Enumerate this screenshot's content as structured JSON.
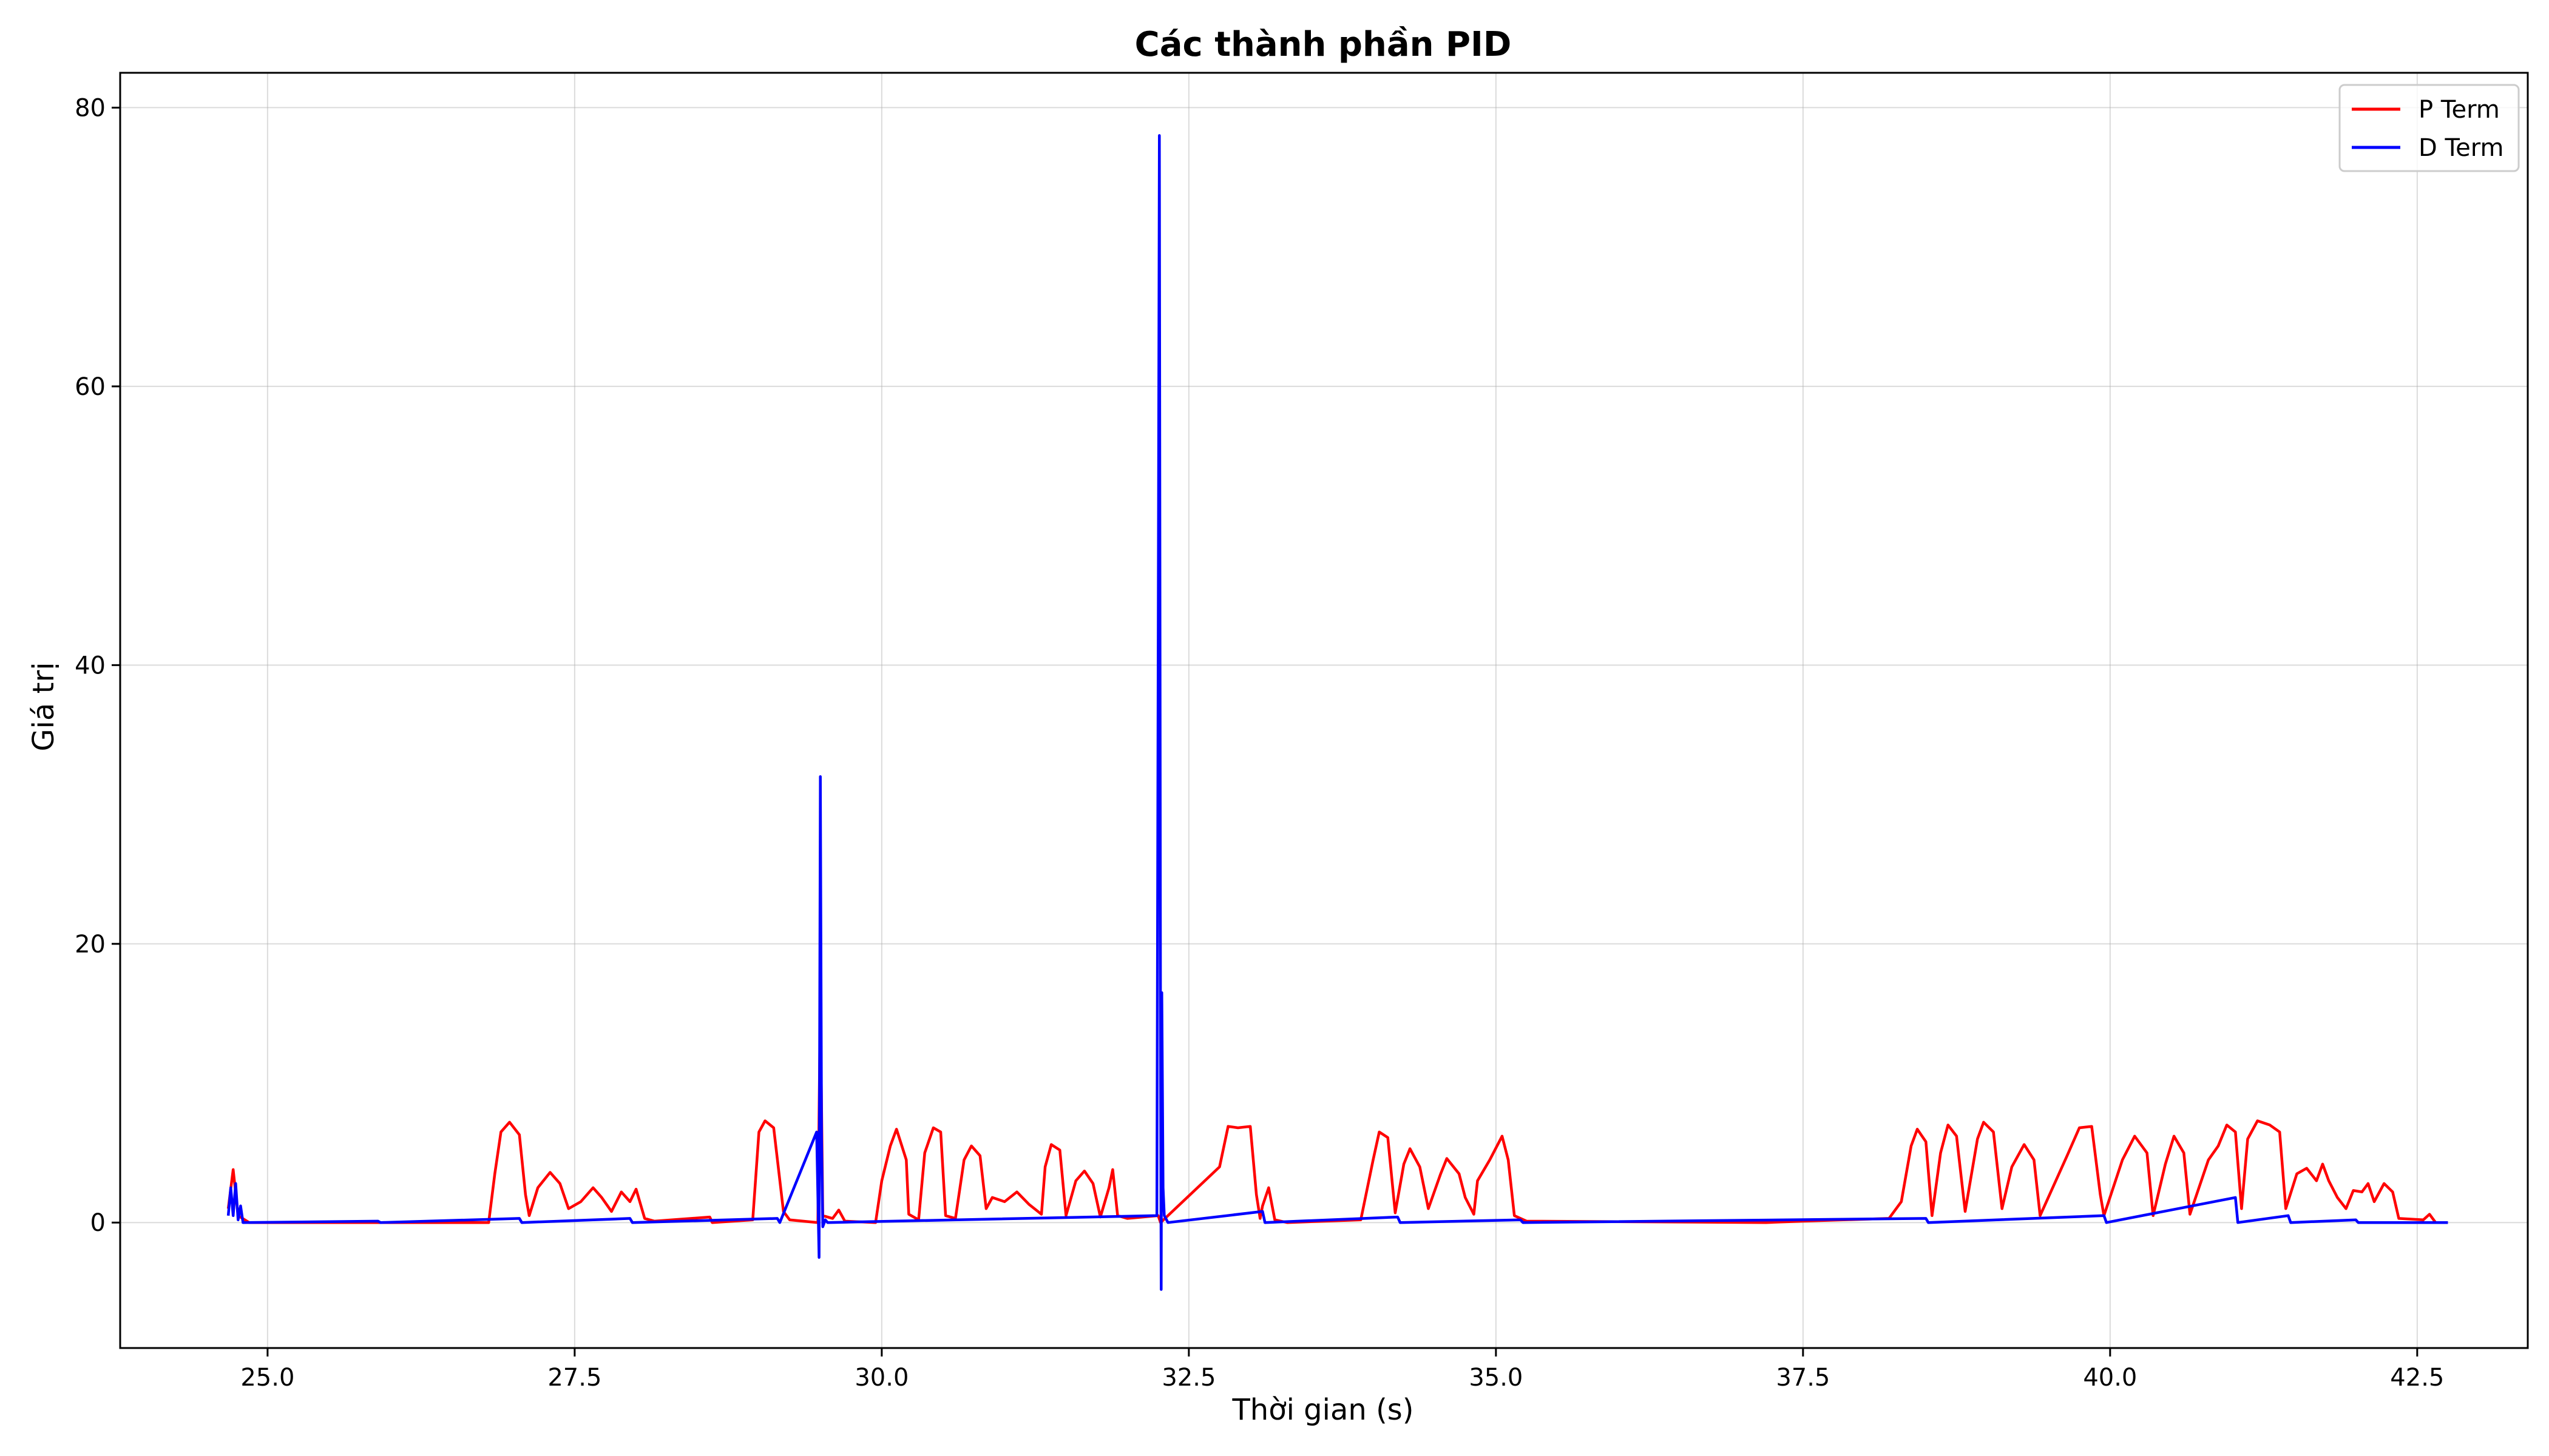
{
  "chart_data": {
    "type": "line",
    "title": "Các thành phần PID",
    "xlabel": "Thời gian (s)",
    "ylabel": "Giá trị",
    "xlim": [
      23.8,
      43.4
    ],
    "ylim": [
      -9,
      82.5
    ],
    "x_ticks": [
      25.0,
      27.5,
      30.0,
      32.5,
      35.0,
      37.5,
      40.0,
      42.5
    ],
    "y_ticks": [
      0,
      20,
      40,
      60,
      80
    ],
    "grid": true,
    "legend_position": "top-right",
    "series": [
      {
        "name": "P Term",
        "color": "#ff0000",
        "points": [
          [
            24.68,
            1.0
          ],
          [
            24.72,
            3.8
          ],
          [
            24.76,
            0.5
          ],
          [
            24.85,
            0.0
          ],
          [
            26.8,
            0.0
          ],
          [
            26.85,
            3.5
          ],
          [
            26.9,
            6.5
          ],
          [
            26.97,
            7.2
          ],
          [
            27.05,
            6.3
          ],
          [
            27.1,
            2.0
          ],
          [
            27.13,
            0.5
          ],
          [
            27.2,
            2.5
          ],
          [
            27.3,
            3.6
          ],
          [
            27.38,
            2.8
          ],
          [
            27.45,
            1.0
          ],
          [
            27.55,
            1.5
          ],
          [
            27.65,
            2.5
          ],
          [
            27.72,
            1.8
          ],
          [
            27.8,
            0.8
          ],
          [
            27.88,
            2.2
          ],
          [
            27.95,
            1.5
          ],
          [
            28.0,
            2.4
          ],
          [
            28.07,
            0.3
          ],
          [
            28.15,
            0.1
          ],
          [
            28.6,
            0.4
          ],
          [
            28.62,
            0.0
          ],
          [
            28.95,
            0.2
          ],
          [
            29.0,
            6.5
          ],
          [
            29.05,
            7.3
          ],
          [
            29.12,
            6.8
          ],
          [
            29.2,
            0.8
          ],
          [
            29.25,
            0.2
          ],
          [
            29.48,
            0.0
          ],
          [
            29.5,
            16
          ],
          [
            29.52,
            0.5
          ],
          [
            29.6,
            0.3
          ],
          [
            29.65,
            0.9
          ],
          [
            29.7,
            0.1
          ],
          [
            29.95,
            0.0
          ],
          [
            30.0,
            3.0
          ],
          [
            30.07,
            5.5
          ],
          [
            30.12,
            6.7
          ],
          [
            30.2,
            4.5
          ],
          [
            30.22,
            0.6
          ],
          [
            30.3,
            0.2
          ],
          [
            30.35,
            5.0
          ],
          [
            30.42,
            6.8
          ],
          [
            30.48,
            6.5
          ],
          [
            30.52,
            0.5
          ],
          [
            30.6,
            0.3
          ],
          [
            30.67,
            4.5
          ],
          [
            30.73,
            5.5
          ],
          [
            30.8,
            4.8
          ],
          [
            30.85,
            1.0
          ],
          [
            30.9,
            1.8
          ],
          [
            31.0,
            1.5
          ],
          [
            31.1,
            2.2
          ],
          [
            31.2,
            1.3
          ],
          [
            31.3,
            0.6
          ],
          [
            31.33,
            4.0
          ],
          [
            31.38,
            5.6
          ],
          [
            31.45,
            5.2
          ],
          [
            31.5,
            0.5
          ],
          [
            31.58,
            3.0
          ],
          [
            31.65,
            3.7
          ],
          [
            31.72,
            2.8
          ],
          [
            31.78,
            0.4
          ],
          [
            31.85,
            2.5
          ],
          [
            31.88,
            3.8
          ],
          [
            31.92,
            0.5
          ],
          [
            32.0,
            0.3
          ],
          [
            32.25,
            0.5
          ],
          [
            32.27,
            0.0
          ],
          [
            32.75,
            4.0
          ],
          [
            32.82,
            6.9
          ],
          [
            32.9,
            6.8
          ],
          [
            33.0,
            6.9
          ],
          [
            33.05,
            2.0
          ],
          [
            33.08,
            0.3
          ],
          [
            33.1,
            1.2
          ],
          [
            33.15,
            2.5
          ],
          [
            33.2,
            0.2
          ],
          [
            33.3,
            0.0
          ],
          [
            33.9,
            0.2
          ],
          [
            34.0,
            4.5
          ],
          [
            34.05,
            6.5
          ],
          [
            34.12,
            6.1
          ],
          [
            34.18,
            0.7
          ],
          [
            34.25,
            4.2
          ],
          [
            34.3,
            5.3
          ],
          [
            34.38,
            4.0
          ],
          [
            34.45,
            1.0
          ],
          [
            34.55,
            3.5
          ],
          [
            34.6,
            4.6
          ],
          [
            34.7,
            3.5
          ],
          [
            34.75,
            1.8
          ],
          [
            34.82,
            0.6
          ],
          [
            34.85,
            3.0
          ],
          [
            34.95,
            4.5
          ],
          [
            35.05,
            6.2
          ],
          [
            35.1,
            4.5
          ],
          [
            35.15,
            0.5
          ],
          [
            35.25,
            0.1
          ],
          [
            37.2,
            0.0
          ],
          [
            37.5,
            0.1
          ],
          [
            38.2,
            0.3
          ],
          [
            38.3,
            1.5
          ],
          [
            38.38,
            5.5
          ],
          [
            38.43,
            6.7
          ],
          [
            38.5,
            5.8
          ],
          [
            38.55,
            0.5
          ],
          [
            38.62,
            5.0
          ],
          [
            38.68,
            7.0
          ],
          [
            38.75,
            6.2
          ],
          [
            38.82,
            0.8
          ],
          [
            38.92,
            6.0
          ],
          [
            38.97,
            7.2
          ],
          [
            39.05,
            6.5
          ],
          [
            39.12,
            1.0
          ],
          [
            39.2,
            4.0
          ],
          [
            39.3,
            5.6
          ],
          [
            39.38,
            4.5
          ],
          [
            39.43,
            0.5
          ],
          [
            39.65,
            4.8
          ],
          [
            39.75,
            6.8
          ],
          [
            39.85,
            6.9
          ],
          [
            39.92,
            2.0
          ],
          [
            39.95,
            0.5
          ],
          [
            40.1,
            4.5
          ],
          [
            40.2,
            6.2
          ],
          [
            40.3,
            5.0
          ],
          [
            40.35,
            0.5
          ],
          [
            40.45,
            4.2
          ],
          [
            40.52,
            6.2
          ],
          [
            40.6,
            5.0
          ],
          [
            40.65,
            0.6
          ],
          [
            40.8,
            4.5
          ],
          [
            40.88,
            5.5
          ],
          [
            40.95,
            7.0
          ],
          [
            41.02,
            6.5
          ],
          [
            41.07,
            1.0
          ],
          [
            41.12,
            6.0
          ],
          [
            41.2,
            7.3
          ],
          [
            41.3,
            7.0
          ],
          [
            41.38,
            6.5
          ],
          [
            41.43,
            1.0
          ],
          [
            41.52,
            3.5
          ],
          [
            41.6,
            3.9
          ],
          [
            41.68,
            3.0
          ],
          [
            41.73,
            4.2
          ],
          [
            41.78,
            3.0
          ],
          [
            41.85,
            1.8
          ],
          [
            41.92,
            1.0
          ],
          [
            41.98,
            2.3
          ],
          [
            42.05,
            2.2
          ],
          [
            42.1,
            2.8
          ],
          [
            42.15,
            1.5
          ],
          [
            42.23,
            2.8
          ],
          [
            42.3,
            2.2
          ],
          [
            42.35,
            0.3
          ],
          [
            42.55,
            0.2
          ],
          [
            42.6,
            0.6
          ],
          [
            42.65,
            0.0
          ],
          [
            42.75,
            0.0
          ]
        ]
      },
      {
        "name": "D Term",
        "color": "#0000ff",
        "points": [
          [
            24.68,
            0.5
          ],
          [
            24.7,
            2.5
          ],
          [
            24.72,
            0.5
          ],
          [
            24.74,
            2.8
          ],
          [
            24.76,
            0.2
          ],
          [
            24.78,
            1.2
          ],
          [
            24.8,
            0.0
          ],
          [
            25.9,
            0.1
          ],
          [
            25.92,
            0.0
          ],
          [
            27.05,
            0.3
          ],
          [
            27.07,
            0.0
          ],
          [
            27.95,
            0.3
          ],
          [
            27.97,
            0.0
          ],
          [
            29.15,
            0.3
          ],
          [
            29.17,
            0.0
          ],
          [
            29.47,
            6.5
          ],
          [
            29.49,
            -2.5
          ],
          [
            29.5,
            32.0
          ],
          [
            29.51,
            6.0
          ],
          [
            29.52,
            -0.3
          ],
          [
            29.54,
            0.2
          ],
          [
            29.56,
            0.0
          ],
          [
            32.24,
            0.5
          ],
          [
            32.26,
            78.0
          ],
          [
            32.27,
            10.0
          ],
          [
            32.275,
            -4.8
          ],
          [
            32.28,
            16.5
          ],
          [
            32.29,
            2.5
          ],
          [
            32.3,
            0.5
          ],
          [
            32.33,
            0.0
          ],
          [
            33.1,
            0.8
          ],
          [
            33.12,
            0.0
          ],
          [
            34.2,
            0.4
          ],
          [
            34.22,
            0.0
          ],
          [
            35.2,
            0.2
          ],
          [
            35.22,
            0.0
          ],
          [
            38.5,
            0.3
          ],
          [
            38.52,
            0.0
          ],
          [
            39.95,
            0.5
          ],
          [
            39.97,
            0.0
          ],
          [
            41.02,
            1.8
          ],
          [
            41.04,
            0.0
          ],
          [
            41.45,
            0.5
          ],
          [
            41.47,
            0.0
          ],
          [
            42.0,
            0.2
          ],
          [
            42.02,
            0.0
          ],
          [
            42.75,
            0.0
          ]
        ]
      }
    ]
  }
}
